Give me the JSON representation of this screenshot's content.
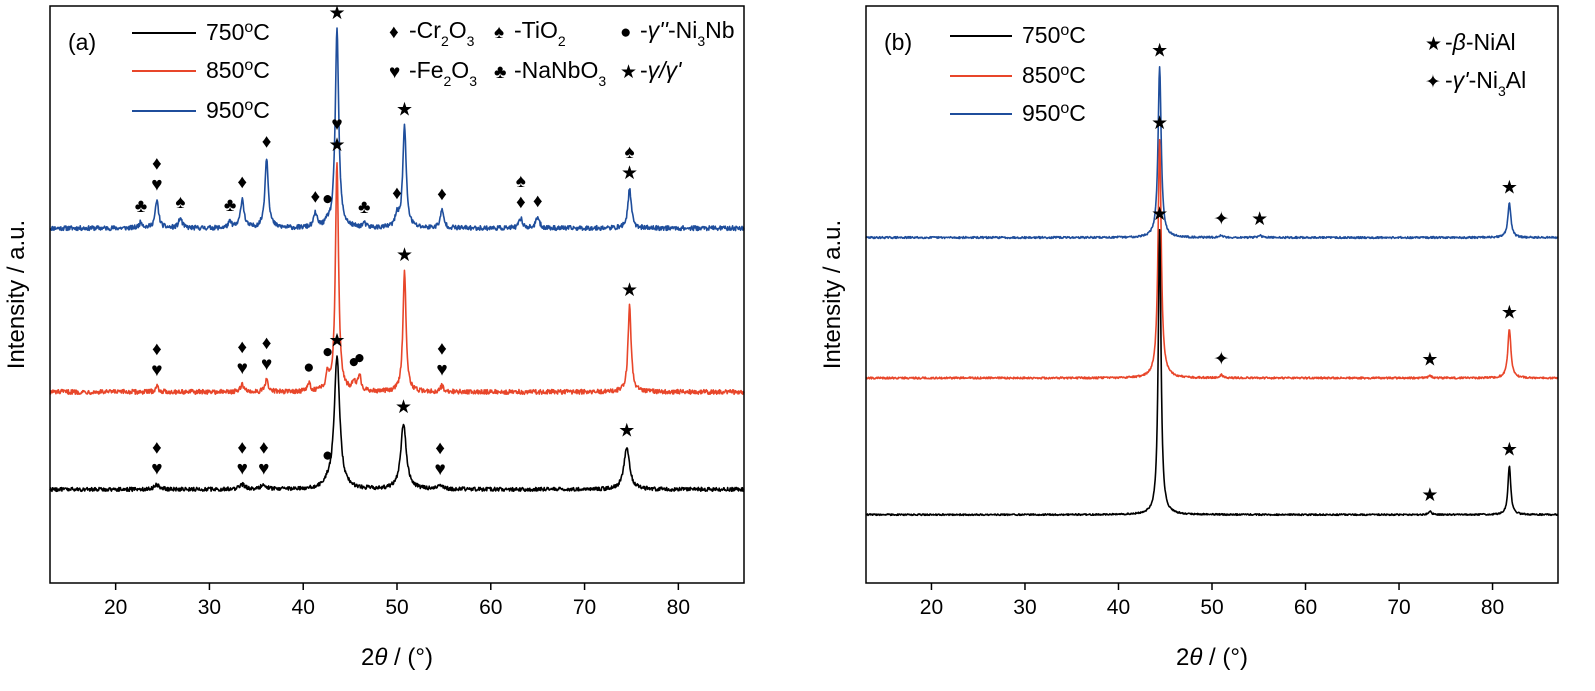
{
  "chart_data": [
    {
      "type": "line",
      "panel_label": "(a)",
      "xlabel_prefix": "2",
      "xlabel_theta": "θ",
      "xlabel_unit": " / (°)",
      "ylabel": "Intensity / a.u.",
      "xlim": [
        13,
        87
      ],
      "xticks": [
        20,
        30,
        40,
        50,
        60,
        70,
        80
      ],
      "yticks_shown": false,
      "legend": {
        "placement": "top-left",
        "entries": [
          {
            "temp": "750",
            "sup": "o",
            "unit": "C",
            "color": "#000000"
          },
          {
            "temp": "850",
            "sup": "o",
            "unit": "C",
            "color": "#e8462a"
          },
          {
            "temp": "950",
            "sup": "o",
            "unit": "C",
            "color": "#1f4e9c"
          }
        ]
      },
      "phase_key": [
        {
          "symbol": "♦",
          "parts": [
            [
              "-Cr",
              "n"
            ],
            [
              "2",
              "sub"
            ],
            [
              "O",
              "n"
            ],
            [
              "3",
              "sub"
            ]
          ]
        },
        {
          "symbol": "♠",
          "parts": [
            [
              "-TiO",
              "n"
            ],
            [
              "2",
              "sub"
            ]
          ]
        },
        {
          "symbol": "●",
          "parts": [
            [
              "-",
              "n"
            ],
            [
              "γ''",
              "i"
            ],
            [
              "-Ni",
              "n"
            ],
            [
              "3",
              "sub"
            ],
            [
              "Nb",
              "n"
            ]
          ]
        },
        {
          "symbol": "♥",
          "parts": [
            [
              "-Fe",
              "n"
            ],
            [
              "2",
              "sub"
            ],
            [
              "O",
              "n"
            ],
            [
              "3",
              "sub"
            ]
          ]
        },
        {
          "symbol": "♣",
          "parts": [
            [
              "-NaNbO",
              "n"
            ],
            [
              "3",
              "sub"
            ]
          ]
        },
        {
          "symbol": "★",
          "parts": [
            [
              "-",
              "n"
            ],
            [
              "γ/γ'",
              "i"
            ]
          ]
        }
      ],
      "series": [
        {
          "name": "950°C",
          "color": "#1f4e9c",
          "baseline": 7.5,
          "noise": 0.06,
          "width": 0.22,
          "peaks": [
            [
              22.7,
              0.15
            ],
            [
              24.4,
              0.7
            ],
            [
              26.9,
              0.25
            ],
            [
              32.2,
              0.15
            ],
            [
              33.5,
              0.75
            ],
            [
              36.1,
              1.8
            ],
            [
              41.3,
              0.35
            ],
            [
              42.6,
              0.1
            ],
            [
              43.6,
              5.1
            ],
            [
              46.5,
              0.1
            ],
            [
              50.0,
              0.3
            ],
            [
              50.8,
              2.6
            ],
            [
              54.8,
              0.45
            ],
            [
              63.2,
              0.25
            ],
            [
              65.0,
              0.28
            ],
            [
              74.8,
              1.0
            ]
          ],
          "markers": [
            {
              "x": 22.7,
              "symbols": "♣"
            },
            {
              "x": 24.4,
              "symbols": "♥♦"
            },
            {
              "x": 26.9,
              "symbols": "♠"
            },
            {
              "x": 32.2,
              "symbols": "♣"
            },
            {
              "x": 33.5,
              "symbols": "♦"
            },
            {
              "x": 36.1,
              "symbols": "♦"
            },
            {
              "x": 41.3,
              "symbols": "♦"
            },
            {
              "x": 42.6,
              "symbols": "●"
            },
            {
              "x": 43.6,
              "symbols": "★♥"
            },
            {
              "x": 46.5,
              "symbols": "♣"
            },
            {
              "x": 50.0,
              "symbols": "♦"
            },
            {
              "x": 50.8,
              "symbols": "★"
            },
            {
              "x": 54.8,
              "symbols": "♦"
            },
            {
              "x": 63.2,
              "symbols": "♦♠"
            },
            {
              "x": 65.0,
              "symbols": "♦"
            },
            {
              "x": 74.8,
              "symbols": "★♠"
            }
          ]
        },
        {
          "name": "850°C",
          "color": "#e8462a",
          "baseline": 3.3,
          "noise": 0.06,
          "width": 0.2,
          "peaks": [
            [
              24.4,
              0.15
            ],
            [
              33.5,
              0.2
            ],
            [
              36.1,
              0.3
            ],
            [
              40.6,
              0.2
            ],
            [
              42.6,
              0.4
            ],
            [
              43.6,
              5.9
            ],
            [
              45.4,
              0.25
            ],
            [
              46.0,
              0.4
            ],
            [
              50.8,
              3.1
            ],
            [
              54.8,
              0.15
            ],
            [
              74.8,
              2.2
            ]
          ],
          "markers": [
            {
              "x": 24.4,
              "symbols": "♥♦"
            },
            {
              "x": 33.5,
              "symbols": "♥♦"
            },
            {
              "x": 36.1,
              "symbols": "♥♦"
            },
            {
              "x": 40.6,
              "symbols": "●"
            },
            {
              "x": 42.6,
              "symbols": "●"
            },
            {
              "x": 43.6,
              "symbols": "★♥"
            },
            {
              "x": 45.4,
              "symbols": "●"
            },
            {
              "x": 46.0,
              "symbols": "●"
            },
            {
              "x": 50.8,
              "symbols": "★"
            },
            {
              "x": 54.8,
              "symbols": "♥♦"
            },
            {
              "x": 74.8,
              "symbols": "★"
            }
          ]
        },
        {
          "name": "750°C",
          "color": "#000000",
          "baseline": 0.8,
          "noise": 0.05,
          "width": 0.35,
          "peaks": [
            [
              24.4,
              0.12
            ],
            [
              33.5,
              0.12
            ],
            [
              35.8,
              0.12
            ],
            [
              42.6,
              0.1
            ],
            [
              43.6,
              3.4
            ],
            [
              50.7,
              1.7
            ],
            [
              54.6,
              0.1
            ],
            [
              74.5,
              1.1
            ]
          ],
          "markers": [
            {
              "x": 24.4,
              "symbols": "♥♦"
            },
            {
              "x": 33.5,
              "symbols": "♥♦"
            },
            {
              "x": 35.8,
              "symbols": "♥♦"
            },
            {
              "x": 42.6,
              "symbols": "●"
            },
            {
              "x": 43.6,
              "symbols": "★"
            },
            {
              "x": 50.7,
              "symbols": "★"
            },
            {
              "x": 54.6,
              "symbols": "♥♦"
            },
            {
              "x": 74.5,
              "symbols": "★"
            }
          ]
        }
      ]
    },
    {
      "type": "line",
      "panel_label": "(b)",
      "xlabel_prefix": "2",
      "xlabel_theta": "θ",
      "xlabel_unit": " / (°)",
      "ylabel": "Intensity / a.u.",
      "xlim": [
        13,
        87
      ],
      "xticks": [
        20,
        30,
        40,
        50,
        60,
        70,
        80
      ],
      "yticks_shown": false,
      "legend": {
        "placement": "top-left",
        "entries": [
          {
            "temp": "750",
            "sup": "o",
            "unit": "C",
            "color": "#000000"
          },
          {
            "temp": "850",
            "sup": "o",
            "unit": "C",
            "color": "#e8462a"
          },
          {
            "temp": "950",
            "sup": "o",
            "unit": "C",
            "color": "#1f4e9c"
          }
        ]
      },
      "phase_key": [
        {
          "symbol": "★",
          "parts": [
            [
              "-",
              "n"
            ],
            [
              "β",
              "i"
            ],
            [
              "-NiAl",
              "n"
            ]
          ]
        },
        {
          "symbol": "✦",
          "parts": [
            [
              "-",
              "n"
            ],
            [
              "γ'",
              "i"
            ],
            [
              "-Ni",
              "n"
            ],
            [
              "3",
              "sub"
            ],
            [
              "Al",
              "n"
            ]
          ]
        }
      ],
      "series": [
        {
          "name": "950°C",
          "color": "#1f4e9c",
          "baseline": 7.3,
          "noise": 0.025,
          "width": 0.2,
          "peaks": [
            [
              44.4,
              4.5
            ],
            [
              51.0,
              0.06
            ],
            [
              55.1,
              0.06
            ],
            [
              81.8,
              0.9
            ]
          ],
          "markers": [
            {
              "x": 44.4,
              "symbols": "★"
            },
            {
              "x": 51.0,
              "symbols": "✦"
            },
            {
              "x": 55.1,
              "symbols": "★"
            },
            {
              "x": 81.8,
              "symbols": "★"
            }
          ]
        },
        {
          "name": "850°C",
          "color": "#e8462a",
          "baseline": 3.6,
          "noise": 0.025,
          "width": 0.2,
          "peaks": [
            [
              44.4,
              6.3
            ],
            [
              51.0,
              0.08
            ],
            [
              73.3,
              0.06
            ],
            [
              81.8,
              1.3
            ]
          ],
          "markers": [
            {
              "x": 44.4,
              "symbols": "★"
            },
            {
              "x": 51.0,
              "symbols": "✦"
            },
            {
              "x": 73.3,
              "symbols": "★"
            },
            {
              "x": 81.8,
              "symbols": "★"
            }
          ]
        },
        {
          "name": "750°C",
          "color": "#000000",
          "baseline": 0.0,
          "noise": 0.02,
          "width": 0.18,
          "peaks": [
            [
              44.4,
              7.5
            ],
            [
              73.3,
              0.1
            ],
            [
              81.8,
              1.3
            ]
          ],
          "markers": [
            {
              "x": 44.4,
              "symbols": "★"
            },
            {
              "x": 73.3,
              "symbols": "★"
            },
            {
              "x": 81.8,
              "symbols": "★"
            }
          ]
        }
      ]
    }
  ]
}
